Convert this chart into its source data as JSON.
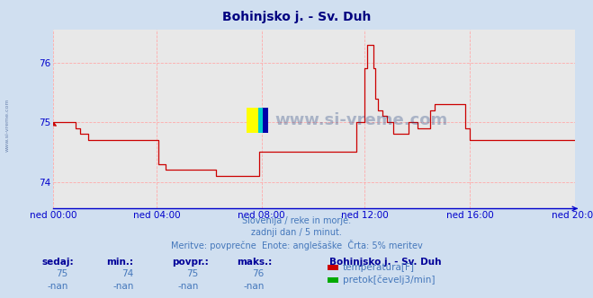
{
  "title": "Bohinjsko j. - Sv. Duh",
  "title_color": "#000080",
  "bg_color": "#d0dff0",
  "plot_bg_color": "#e8e8e8",
  "grid_color": "#ffaaaa",
  "axis_color": "#0000cc",
  "x_labels": [
    "ned 00:00",
    "ned 04:00",
    "ned 08:00",
    "ned 12:00",
    "ned 16:00",
    "ned 20:00"
  ],
  "ylim": [
    73.55,
    76.55
  ],
  "yticks": [
    74,
    75,
    76
  ],
  "line_color": "#cc0000",
  "watermark_text": "www.si-vreme.com",
  "watermark_color": "#1a3a7a",
  "side_watermark": "www.si-vreme.com",
  "subtitle1": "Slovenija / reke in morje.",
  "subtitle2": "zadnji dan / 5 minut.",
  "subtitle3": "Meritve: povprečne  Enote: anglešaške  Črta: 5% meritev",
  "subtitle_color": "#4477bb",
  "table_header_color": "#000099",
  "table_value_color": "#4477bb",
  "station_name": "Bohinjsko j. - Sv. Duh",
  "station_name_color": "#000099",
  "legend_items": [
    {
      "label": "temperatura[F]",
      "color": "#cc0000"
    },
    {
      "label": "pretok[čevelj3/min]",
      "color": "#00aa00"
    }
  ],
  "col_headers": [
    "sedaj:",
    "min.:",
    "povpr.:",
    "maks.:"
  ],
  "row1_vals": [
    "75",
    "74",
    "75",
    "76"
  ],
  "row2_vals": [
    "-nan",
    "-nan",
    "-nan",
    "-nan"
  ],
  "temp_data": [
    75.0,
    75.0,
    75.0,
    75.0,
    75.0,
    75.0,
    75.0,
    75.0,
    75.0,
    75.0,
    74.9,
    74.9,
    74.8,
    74.8,
    74.8,
    74.8,
    74.7,
    74.7,
    74.7,
    74.7,
    74.7,
    74.7,
    74.7,
    74.7,
    74.7,
    74.7,
    74.7,
    74.7,
    74.7,
    74.7,
    74.7,
    74.7,
    74.7,
    74.7,
    74.7,
    74.7,
    74.7,
    74.7,
    74.7,
    74.7,
    74.7,
    74.7,
    74.7,
    74.7,
    74.7,
    74.7,
    74.7,
    74.7,
    74.3,
    74.3,
    74.3,
    74.2,
    74.2,
    74.2,
    74.2,
    74.2,
    74.2,
    74.2,
    74.2,
    74.2,
    74.2,
    74.2,
    74.2,
    74.2,
    74.2,
    74.2,
    74.2,
    74.2,
    74.2,
    74.2,
    74.2,
    74.2,
    74.2,
    74.2,
    74.1,
    74.1,
    74.1,
    74.1,
    74.1,
    74.1,
    74.1,
    74.1,
    74.1,
    74.1,
    74.1,
    74.1,
    74.1,
    74.1,
    74.1,
    74.1,
    74.1,
    74.1,
    74.1,
    74.1,
    74.5,
    74.5,
    74.5,
    74.5,
    74.5,
    74.5,
    74.5,
    74.5,
    74.5,
    74.5,
    74.5,
    74.5,
    74.5,
    74.5,
    74.5,
    74.5,
    74.5,
    74.5,
    74.5,
    74.5,
    74.5,
    74.5,
    74.5,
    74.5,
    74.5,
    74.5,
    74.5,
    74.5,
    74.5,
    74.5,
    74.5,
    74.5,
    74.5,
    74.5,
    74.5,
    74.5,
    74.5,
    74.5,
    74.5,
    74.5,
    74.5,
    74.5,
    74.5,
    74.5,
    75.0,
    75.0,
    75.0,
    75.0,
    75.9,
    76.3,
    76.3,
    76.3,
    75.9,
    75.4,
    75.2,
    75.2,
    75.1,
    75.1,
    75.0,
    75.0,
    75.0,
    74.8,
    74.8,
    74.8,
    74.8,
    74.8,
    74.8,
    74.8,
    75.0,
    75.0,
    75.0,
    75.0,
    74.9,
    74.9,
    74.9,
    74.9,
    74.9,
    74.9,
    75.2,
    75.2,
    75.3,
    75.3,
    75.3,
    75.3,
    75.3,
    75.3,
    75.3,
    75.3,
    75.3,
    75.3,
    75.3,
    75.3,
    75.3,
    75.3,
    74.9,
    74.9,
    74.7,
    74.7,
    74.7,
    74.7,
    74.7,
    74.7,
    74.7,
    74.7,
    74.7,
    74.7,
    74.7,
    74.7,
    74.7,
    74.7,
    74.7,
    74.7,
    74.7,
    74.7,
    74.7,
    74.7,
    74.7,
    74.7,
    74.7,
    74.7,
    74.7,
    74.7,
    74.7,
    74.7,
    74.7,
    74.7,
    74.7,
    74.7,
    74.7,
    74.7,
    74.7,
    74.7,
    74.7,
    74.7,
    74.7,
    74.7,
    74.7,
    74.7,
    74.7,
    74.7,
    74.7,
    74.7,
    74.7,
    74.7,
    74.7
  ]
}
